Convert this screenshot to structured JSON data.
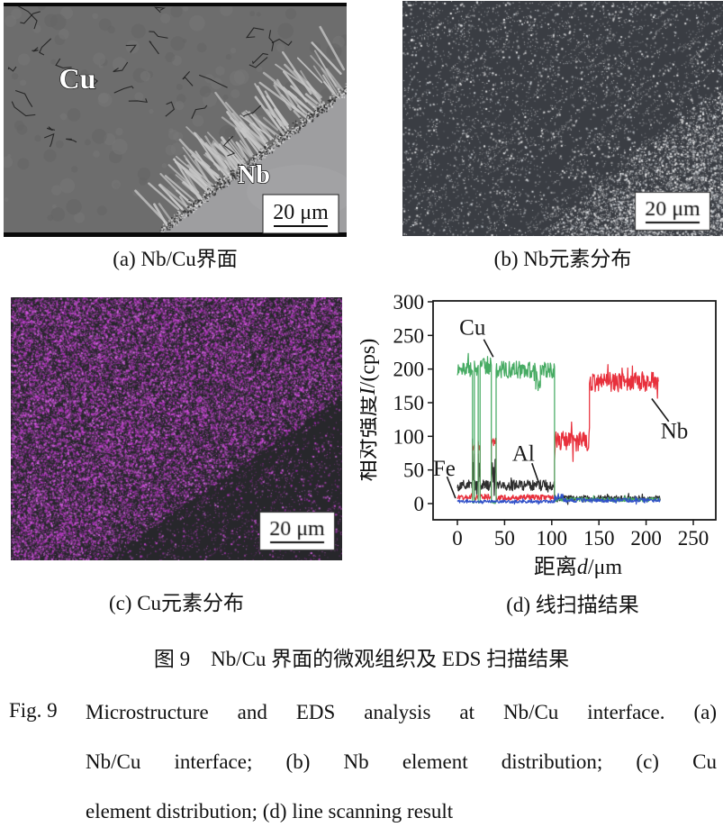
{
  "figure": {
    "panels": {
      "a": {
        "caption": "(a) Nb/Cu界面",
        "labels": {
          "cu": "Cu",
          "nb": "Nb"
        },
        "scale_bar": "20 μm",
        "regions": {
          "dark_phase": "Cu",
          "light_phase": "Nb"
        }
      },
      "b": {
        "caption": "(b) Nb元素分布",
        "scale_bar": "20 μm",
        "element": "Nb",
        "dot_color": "#f2f2f2"
      },
      "c": {
        "caption": "(c) Cu元素分布",
        "scale_bar": "20 μm",
        "element": "Cu",
        "dot_color": "#c43ccf"
      },
      "d": {
        "caption": "(d) 线扫描结果"
      }
    },
    "title_cn": "图 9　Nb/Cu 界面的微观组织及 EDS 扫描结果",
    "caption_en": {
      "label": "Fig. 9",
      "lines": [
        "Microstructure and EDS analysis at Nb/Cu interface. (a)",
        "Nb/Cu interface; (b) Nb element distribution; (c) Cu",
        "element distribution; (d) line scanning result"
      ]
    }
  },
  "colors": {
    "cu_line": "#47ab63",
    "nb_line": "#e8303c",
    "al_line": "#2f2f2f",
    "fe_line": "#3050c8",
    "axis": "#1a1a1a",
    "sem_cu_region": "#6d6d6d",
    "sem_nb_region": "#9e9ea0",
    "nb_map_bg": "#3a3d43",
    "cu_map_bg": "#27272b"
  },
  "chart_data": {
    "type": "line",
    "title": "",
    "xlabel": "距离d/μm",
    "xlabel_parts": [
      {
        "t": "距离"
      },
      {
        "t": "d",
        "i": true
      },
      {
        "t": "/μm"
      }
    ],
    "ylabel": "相对强度I/(cps)",
    "ylabel_parts": [
      {
        "t": "相对强度"
      },
      {
        "t": "I",
        "i": true
      },
      {
        "t": "/(cps)"
      }
    ],
    "xlim": [
      -26,
      274
    ],
    "ylim": [
      -24,
      301
    ],
    "xticks": [
      0,
      50,
      100,
      150,
      200,
      250
    ],
    "yticks": [
      0,
      50,
      100,
      150,
      200,
      250,
      300
    ],
    "grid": false,
    "legend": "inline-annotations",
    "sample_step_um": 0.5,
    "series": [
      {
        "name": "Al",
        "color": "#2f2f2f",
        "segments": [
          [
            0,
            16,
            27,
            8
          ],
          [
            16,
            18,
            58,
            24
          ],
          [
            18,
            22,
            27,
            8
          ],
          [
            22,
            24,
            55,
            24
          ],
          [
            24,
            36,
            27,
            8
          ],
          [
            36,
            41,
            50,
            22
          ],
          [
            41,
            103,
            27,
            8
          ],
          [
            103,
            215,
            8,
            4
          ]
        ]
      },
      {
        "name": "Nb",
        "color": "#e8303c",
        "segments": [
          [
            0,
            16,
            9,
            4
          ],
          [
            16,
            18,
            86,
            10
          ],
          [
            18,
            22,
            9,
            4
          ],
          [
            22,
            24,
            84,
            10
          ],
          [
            24,
            36,
            10,
            4
          ],
          [
            36,
            41,
            90,
            10
          ],
          [
            41,
            103,
            9,
            4
          ],
          [
            103,
            140,
            93,
            15
          ],
          [
            140,
            213,
            181,
            15
          ]
        ]
      },
      {
        "name": "Cu",
        "color": "#47ab63",
        "segments": [
          [
            0,
            16,
            201,
            12
          ],
          [
            16,
            18,
            2,
            2
          ],
          [
            18,
            22,
            200,
            12
          ],
          [
            22,
            24,
            2,
            2
          ],
          [
            24,
            36,
            205,
            12
          ],
          [
            36,
            41,
            2,
            2
          ],
          [
            41,
            83,
            199,
            13
          ],
          [
            83,
            88,
            178,
            10
          ],
          [
            88,
            103,
            198,
            12
          ],
          [
            103,
            215,
            6,
            3
          ]
        ]
      },
      {
        "name": "Fe",
        "color": "#3050c8",
        "segments": [
          [
            0,
            103,
            3,
            2
          ],
          [
            103,
            112,
            10,
            5
          ],
          [
            112,
            215,
            5,
            3
          ]
        ]
      }
    ],
    "annotations": [
      {
        "text": "Cu",
        "tx": 16,
        "ty": 262,
        "line": [
          [
            28,
            244
          ],
          [
            38,
            218
          ]
        ]
      },
      {
        "text": "Nb",
        "tx": 230,
        "ty": 108,
        "line": [
          [
            206,
            156
          ],
          [
            224,
            122
          ]
        ]
      },
      {
        "text": "Al",
        "tx": 70,
        "ty": 74,
        "line": [
          [
            79,
            60
          ],
          [
            86,
            32
          ]
        ]
      },
      {
        "text": "Fe",
        "tx": -14,
        "ty": 52,
        "line": [
          [
            -11,
            40
          ],
          [
            -2,
            8
          ]
        ]
      }
    ]
  }
}
